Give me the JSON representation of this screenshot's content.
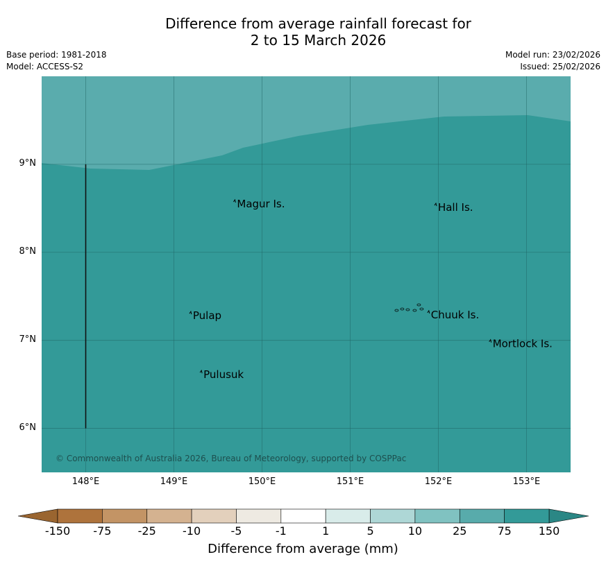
{
  "title": {
    "line1": "Difference from average rainfall forecast for",
    "line2": "2 to 15 March 2026"
  },
  "meta": {
    "base_period": "Base period: 1981-2018",
    "model": "Model: ACCESS-S2",
    "model_run": "Model run: 23/02/2026",
    "issued": "Issued: 25/02/2026"
  },
  "map": {
    "lon_range": [
      147.5,
      153.5
    ],
    "lat_range": [
      5.5,
      10.0
    ],
    "grid": true,
    "background_color": "#339a98",
    "upper_region_color": "#5aacad",
    "lat_ticks": [
      "9°N",
      "8°N",
      "7°N",
      "6°N"
    ],
    "lon_ticks": [
      "148°E",
      "149°E",
      "150°E",
      "151°E",
      "152°E",
      "153°E"
    ],
    "places": [
      {
        "name": "Magur Is.",
        "lon": 149.7,
        "lat": 8.55
      },
      {
        "name": "Hall Is.",
        "lon": 151.98,
        "lat": 8.51
      },
      {
        "name": "Pulap",
        "lon": 149.2,
        "lat": 7.28
      },
      {
        "name": "Chuuk Is.",
        "lon": 151.9,
        "lat": 7.29
      },
      {
        "name": "Mortlock Is.",
        "lon": 152.6,
        "lat": 6.96
      },
      {
        "name": "Pulusuk",
        "lon": 149.32,
        "lat": 6.61
      }
    ],
    "boundary_line": {
      "lon": 148.0,
      "lat_from": 9.0,
      "lat_to": 6.0
    },
    "copyright": "© Commonwealth of Australia 2026, Bureau of Meteorology, supported by COSPPac"
  },
  "colorbar": {
    "title": "Difference from average (mm)",
    "labels": [
      "-150",
      "-75",
      "-25",
      "-10",
      "-5",
      "-1",
      "1",
      "5",
      "10",
      "25",
      "75",
      "150"
    ],
    "colors": [
      "#ae733c",
      "#c39465",
      "#d4b290",
      "#e3d0bc",
      "#eeeae2",
      "#ffffff",
      "#d9ecea",
      "#aed7d6",
      "#80c2c1",
      "#58abab",
      "#339a98"
    ],
    "extend_low_color": "#9a6530",
    "extend_high_color": "#2b8785"
  }
}
